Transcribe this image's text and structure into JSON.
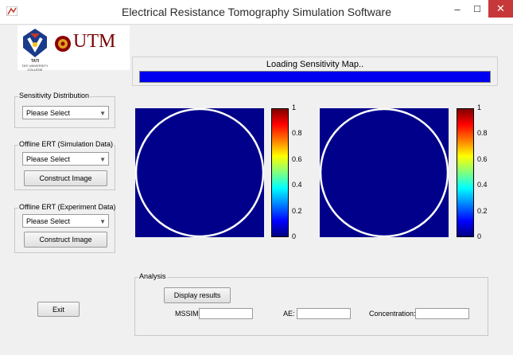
{
  "window": {
    "title": "Electrical Resistance Tomography Simulation Software",
    "minimize_glyph": "–",
    "maximize_glyph": "☐",
    "close_glyph": "✕"
  },
  "logos": {
    "left_badge_text": "TATI",
    "left_badge_subtext": "TATI UNIVERSITY COLLEGE",
    "right_text": "UTM"
  },
  "loading": {
    "text": "Loading Sensitivity Map..",
    "progress_fraction": 1.0,
    "bar_color": "#0000f0"
  },
  "sensitivity": {
    "group_label": "Sensitivity Distribution",
    "select_value": "Please Select"
  },
  "offline_sim": {
    "group_label": "Offline ERT (Simulation Data)",
    "select_value": "Please Select",
    "button_label": "Construct Image"
  },
  "offline_exp": {
    "group_label": "Offline ERT (Experiment Data)",
    "select_value": "Please Select",
    "button_label": "Construct Image"
  },
  "exit_label": "Exit",
  "plots": {
    "fill_color": "#00008b",
    "circle_color": "#ffffff",
    "colorbar_ticks": [
      "1",
      "0.8",
      "0.6",
      "0.4",
      "0.2",
      "0"
    ]
  },
  "analysis": {
    "group_label": "Analysis",
    "display_label": "Display results",
    "mssim_label": "MSSIM:",
    "ae_label": "AE:",
    "concentration_label": "Concentration:",
    "mssim_value": "",
    "ae_value": "",
    "concentration_value": ""
  }
}
